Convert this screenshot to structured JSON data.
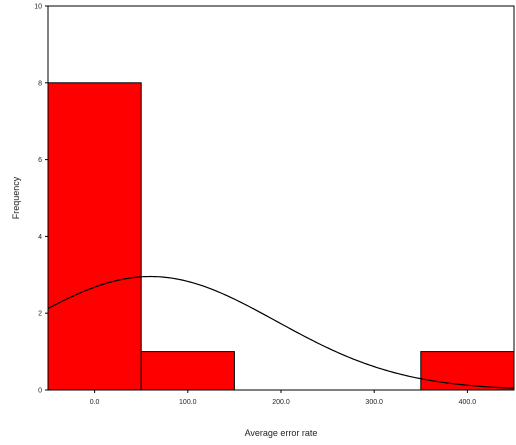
{
  "chart_data": {
    "type": "bar",
    "title": "",
    "xlabel": "Average error rate",
    "ylabel": "Frequency",
    "xlim": [
      -50,
      450
    ],
    "ylim": [
      0,
      10
    ],
    "x_ticks": [
      0,
      100,
      200,
      300,
      400
    ],
    "x_tick_labels": [
      "0.0",
      "100.0",
      "200.0",
      "300.0",
      "400.0"
    ],
    "y_ticks": [
      0,
      2,
      4,
      6,
      8,
      10
    ],
    "y_tick_labels": [
      "0",
      "2",
      "4",
      "6",
      "8",
      "10"
    ],
    "bins": [
      {
        "start": -50,
        "end": 50,
        "count": 8
      },
      {
        "start": 50,
        "end": 150,
        "count": 1
      },
      {
        "start": 150,
        "end": 250,
        "count": 0
      },
      {
        "start": 250,
        "end": 350,
        "count": 0
      },
      {
        "start": 350,
        "end": 450,
        "count": 1
      }
    ],
    "normal_curve": {
      "mean": 60,
      "sd": 135
    },
    "bar_color": "#ff0000",
    "curve_color": "#000000",
    "grid": false,
    "legend": "none"
  }
}
